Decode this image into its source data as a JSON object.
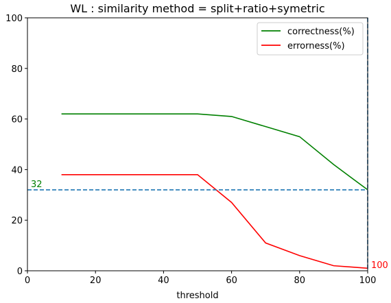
{
  "chart_data": {
    "type": "line",
    "title": "WL : similarity method = split+ratio+symetric",
    "xlabel": "threshold",
    "ylabel": "",
    "xlim": [
      0,
      100
    ],
    "ylim": [
      0,
      100
    ],
    "xticks": [
      0,
      20,
      40,
      60,
      80,
      100
    ],
    "yticks": [
      0,
      20,
      40,
      60,
      80,
      100
    ],
    "xtick_labels": [
      "0",
      "20",
      "40",
      "60",
      "80",
      "100"
    ],
    "ytick_labels": [
      "0",
      "20",
      "40",
      "60",
      "80",
      "100"
    ],
    "grid": false,
    "legend_position": "top-right",
    "series": [
      {
        "name": "correctness(%)",
        "color": "#008000",
        "x": [
          10,
          20,
          30,
          40,
          50,
          60,
          70,
          80,
          90,
          100
        ],
        "y": [
          62,
          62,
          62,
          62,
          62,
          61,
          57,
          53,
          42,
          32
        ]
      },
      {
        "name": "errorness(%)",
        "color": "#ff0000",
        "x": [
          10,
          20,
          30,
          40,
          50,
          60,
          70,
          80,
          90,
          100
        ],
        "y": [
          38,
          38,
          38,
          38,
          38,
          27,
          11,
          6,
          2,
          1
        ]
      }
    ],
    "reference_lines": [
      {
        "orientation": "horizontal",
        "value": 32,
        "color": "#1f77b4",
        "style": "dashed"
      },
      {
        "orientation": "vertical",
        "value": 100,
        "color": "#1f77b4",
        "style": "dashed"
      }
    ],
    "annotations": [
      {
        "text": "32",
        "x": 0,
        "y": 32,
        "color": "#008000"
      },
      {
        "text": "100",
        "x": 100,
        "y": 0,
        "color": "#ff0000"
      }
    ]
  }
}
